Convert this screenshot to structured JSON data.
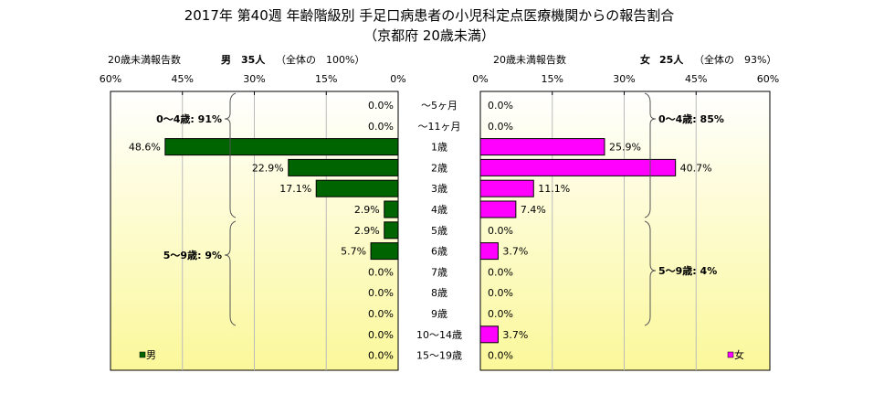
{
  "chart_data": {
    "type": "bar",
    "title": "2017年 第40週 年齢階級別 手足口病患者の小児科定点医療機関からの報告割合",
    "subtitle": "（京都府 20歳未満）",
    "categories": [
      "〜5ヶ月",
      "〜11ヶ月",
      "1歳",
      "2歳",
      "3歳",
      "4歳",
      "5歳",
      "6歳",
      "7歳",
      "8歳",
      "9歳",
      "10〜14歳",
      "15〜19歳"
    ],
    "xlim": [
      0,
      60
    ],
    "ticks": [
      "0%",
      "15%",
      "30%",
      "45%",
      "60%"
    ],
    "series": [
      {
        "name": "男",
        "color": "#006400",
        "header": {
          "label": "20歳未満報告数",
          "sex": "男",
          "count": "35人",
          "share": "（全体の　100%）"
        },
        "values": [
          0.0,
          0.0,
          48.6,
          22.9,
          17.1,
          2.9,
          2.9,
          5.7,
          0.0,
          0.0,
          0.0,
          0.0,
          0.0
        ],
        "labels": [
          "0.0%",
          "0.0%",
          "48.6%",
          "22.9%",
          "17.1%",
          "2.9%",
          "2.9%",
          "5.7%",
          "0.0%",
          "0.0%",
          "0.0%",
          "0.0%",
          "0.0%"
        ],
        "groups": [
          "0〜4歳: 91%",
          "5〜9歳: 9%"
        ]
      },
      {
        "name": "女",
        "color": "#ff00ff",
        "header": {
          "label": "20歳未満報告数",
          "sex": "女",
          "count": "25人",
          "share": "（全体の　93%）"
        },
        "values": [
          0.0,
          0.0,
          25.9,
          40.7,
          11.1,
          7.4,
          0.0,
          3.7,
          0.0,
          0.0,
          0.0,
          3.7,
          0.0
        ],
        "labels": [
          "0.0%",
          "0.0%",
          "25.9%",
          "40.7%",
          "11.1%",
          "7.4%",
          "0.0%",
          "3.7%",
          "0.0%",
          "0.0%",
          "0.0%",
          "3.7%",
          "0.0%"
        ],
        "groups": [
          "0〜4歳: 85%",
          "5〜9歳: 4%"
        ]
      }
    ],
    "legend": [
      "男",
      "女"
    ]
  }
}
